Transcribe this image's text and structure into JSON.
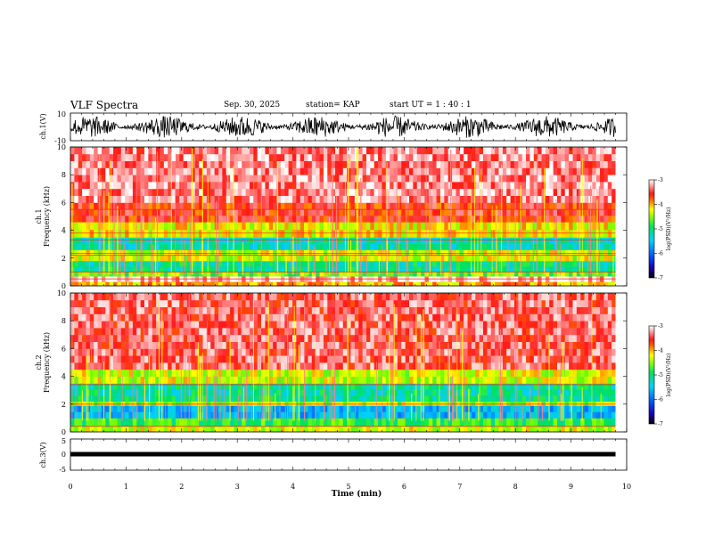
{
  "header": {
    "title": "VLF Spectra",
    "date": "Sep. 30, 2025",
    "station_label": "station= KAP",
    "start_label": "start  UT  =   1 : 40 : 1"
  },
  "chart_data": {
    "type": "spectrogram",
    "xlabel": "Time (min)",
    "xlim": [
      0,
      10
    ],
    "xticks": [
      "0",
      "1",
      "2",
      "3",
      "4",
      "5",
      "6",
      "7",
      "8",
      "9",
      "10"
    ],
    "data_end_min": 9.8,
    "panels": {
      "ch1_wave": {
        "ylabel": "ch.1(V)",
        "ylim": [
          -10,
          10
        ],
        "yticks": [
          "10",
          "-10"
        ]
      },
      "ch1_spec": {
        "ylabel_line1": "ch.1",
        "ylabel_line2": "Frequency (kHz)",
        "ylim": [
          0,
          10
        ],
        "yticks": [
          "0",
          "2",
          "4",
          "6",
          "8",
          "10"
        ],
        "bands": [
          {
            "f0": 0.0,
            "f1": 0.3,
            "level": -4.0
          },
          {
            "f0": 0.3,
            "f1": 0.7,
            "level": -3.1
          },
          {
            "f0": 0.7,
            "f1": 1.0,
            "level": -4.6
          },
          {
            "f0": 1.0,
            "f1": 1.8,
            "level": -5.1
          },
          {
            "f0": 1.8,
            "f1": 2.6,
            "level": -4.3
          },
          {
            "f0": 2.6,
            "f1": 3.5,
            "level": -5.2
          },
          {
            "f0": 3.5,
            "f1": 4.6,
            "level": -4.2
          },
          {
            "f0": 4.6,
            "f1": 6.0,
            "level": -3.6
          },
          {
            "f0": 6.0,
            "f1": 10.0,
            "level": -3.3
          }
        ],
        "lines_khz": [
          0.5,
          1.0,
          2.2,
          2.35,
          3.3,
          3.8,
          5.5
        ]
      },
      "ch2_spec": {
        "ylabel_line1": "ch.2",
        "ylabel_line2": "Frequency (kHz)",
        "ylim": [
          0,
          10
        ],
        "yticks": [
          "0",
          "2",
          "4",
          "6",
          "8",
          "10"
        ],
        "bands": [
          {
            "f0": 0.0,
            "f1": 0.4,
            "level": -4.3
          },
          {
            "f0": 0.4,
            "f1": 1.0,
            "level": -4.8
          },
          {
            "f0": 1.0,
            "f1": 1.9,
            "level": -5.6
          },
          {
            "f0": 1.9,
            "f1": 2.2,
            "level": -4.4
          },
          {
            "f0": 2.2,
            "f1": 3.5,
            "level": -5.1
          },
          {
            "f0": 3.5,
            "f1": 4.5,
            "level": -4.3
          },
          {
            "f0": 4.5,
            "f1": 10.0,
            "level": -3.4
          }
        ],
        "lines_khz": [
          0.4,
          2.0,
          3.4
        ]
      },
      "ch3_wave": {
        "ylabel": "ch.3(V)",
        "ylim": [
          -5,
          5
        ],
        "yticks": [
          "5",
          "0",
          "-5"
        ],
        "level_v": 0
      }
    },
    "colorbar": {
      "label": "log(PSD)(V²/Hz)",
      "range": [
        -7,
        -3
      ],
      "ticks": [
        "-3",
        "-4",
        "-5",
        "-6",
        "-7"
      ]
    }
  }
}
